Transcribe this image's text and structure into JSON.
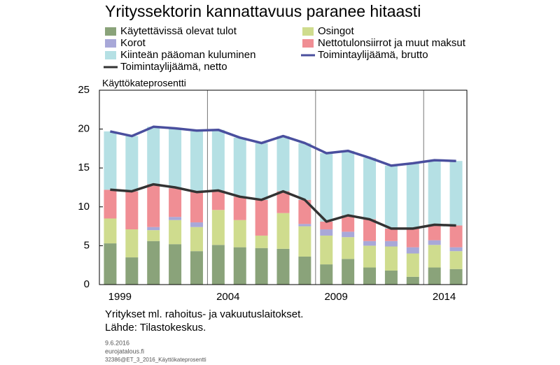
{
  "chart_data": {
    "type": "bar",
    "stacked": true,
    "title": "Yrityssektorin kannattavuus paranee hitaasti",
    "ylabel": "Käyttökateprosentti",
    "notes": [
      "Yritykset ml. rahoitus- ja vakuutuslaitokset.",
      "Lähde: Tilastokeskus."
    ],
    "footer": [
      "9.6.2016",
      "eurojatalous.fi",
      "32386@ET_3_2016_Käyttökateprosentti"
    ],
    "categories": [
      "1999",
      null,
      null,
      null,
      null,
      "2004",
      null,
      null,
      null,
      null,
      "2009",
      null,
      null,
      null,
      null,
      "2014",
      null
    ],
    "ylim": [
      0,
      25
    ],
    "yticks": [
      0,
      5,
      10,
      15,
      20,
      25
    ],
    "series": [
      {
        "name": "Käytettävissä olevat tulot",
        "type": "bar",
        "color": "#8aa37a",
        "values": [
          5.3,
          3.5,
          5.6,
          5.2,
          4.3,
          5.1,
          4.8,
          4.7,
          4.6,
          3.6,
          2.6,
          3.3,
          2.2,
          1.8,
          1.0,
          2.2,
          2.0
        ]
      },
      {
        "name": "Osingot",
        "type": "bar",
        "color": "#cfdc8e",
        "values": [
          3.2,
          3.6,
          1.4,
          3.1,
          3.1,
          4.5,
          3.5,
          1.6,
          4.6,
          3.9,
          3.7,
          2.8,
          2.8,
          3.1,
          3.0,
          2.9,
          2.3
        ]
      },
      {
        "name": "Korot",
        "type": "bar",
        "color": "#a8a8d8",
        "values": [
          0,
          0,
          0.4,
          0.4,
          0.6,
          0,
          0,
          0,
          0,
          0.3,
          0.8,
          0.7,
          0.6,
          0.7,
          0.8,
          0.6,
          0.5
        ]
      },
      {
        "name": "Nettotulonsiirrot ja muut maksut",
        "type": "bar",
        "color": "#f08e94",
        "values": [
          3.7,
          4.9,
          5.5,
          3.7,
          4.0,
          2.5,
          3.0,
          4.6,
          2.8,
          3.1,
          1.0,
          2.1,
          2.8,
          1.6,
          2.4,
          2.0,
          2.8
        ]
      },
      {
        "name": "Kiinteän pääoman kuluminen",
        "type": "bar",
        "color": "#b5e0e4",
        "values": [
          7.5,
          7.1,
          7.4,
          7.7,
          7.7,
          7.8,
          7.6,
          7.3,
          7.1,
          7.3,
          8.8,
          8.3,
          7.9,
          8.1,
          8.4,
          8.3,
          8.3
        ]
      },
      {
        "name": "Toimintaylijäämä, brutto",
        "type": "line",
        "color": "#4a4f9e",
        "values": [
          19.7,
          19.1,
          20.3,
          20.1,
          19.8,
          19.9,
          18.9,
          18.2,
          19.1,
          18.2,
          16.9,
          17.2,
          16.3,
          15.3,
          15.6,
          16.0,
          15.9
        ]
      },
      {
        "name": "Toimintaylijäämä, netto",
        "type": "line",
        "color": "#333333",
        "values": [
          12.2,
          12.0,
          12.9,
          12.5,
          11.9,
          12.1,
          11.3,
          10.9,
          12.0,
          10.9,
          8.1,
          8.9,
          8.4,
          7.2,
          7.2,
          7.7,
          7.6
        ]
      }
    ]
  }
}
